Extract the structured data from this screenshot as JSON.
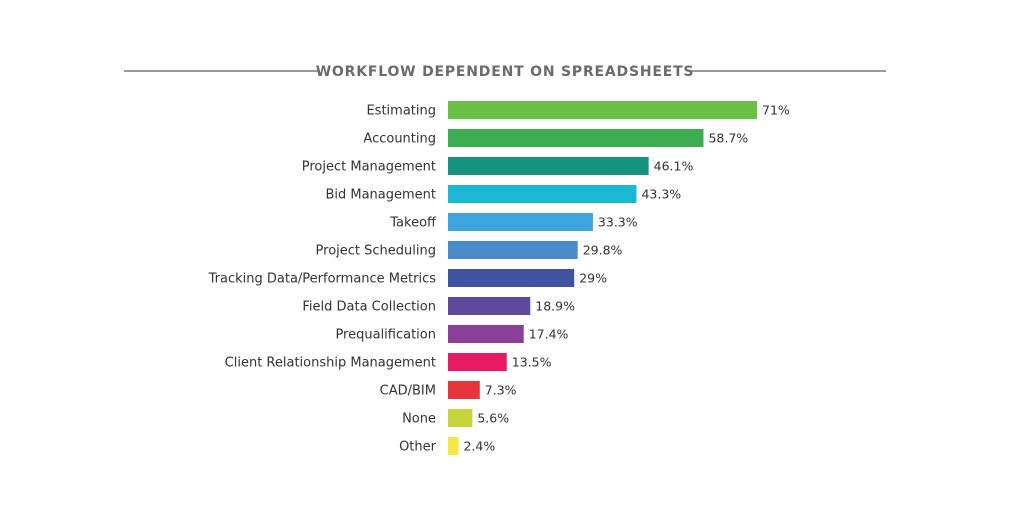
{
  "chart_data": {
    "type": "bar",
    "orientation": "horizontal",
    "title": "WORKFLOW DEPENDENT ON SPREADSHEETS",
    "xlabel": "",
    "ylabel": "",
    "xlim": [
      0,
      71
    ],
    "grid": false,
    "legend": "none",
    "categories": [
      "Estimating",
      "Accounting",
      "Project Management",
      "Bid Management",
      "Takeoff",
      "Project Scheduling",
      "Tracking Data/Performance Metrics",
      "Field Data Collection",
      "Prequalification",
      "Client Relationship Management",
      "CAD/BIM",
      "None",
      "Other"
    ],
    "values": [
      71,
      58.7,
      46.1,
      43.3,
      33.3,
      29.8,
      29,
      18.9,
      17.4,
      13.5,
      7.3,
      5.6,
      2.4
    ],
    "value_labels": [
      "71%",
      "58.7%",
      "46.1%",
      "43.3%",
      "33.3%",
      "29.8%",
      "29%",
      "18.9%",
      "17.4%",
      "13.5%",
      "7.3%",
      "5.6%",
      "2.4%"
    ],
    "colors": [
      "#6abf45",
      "#3ead4f",
      "#14937e",
      "#1ab8d2",
      "#3ea4dd",
      "#4a8ccb",
      "#3f53a0",
      "#5e4a9c",
      "#8a3f98",
      "#e81a63",
      "#e8343a",
      "#c5d53a",
      "#f4e943"
    ],
    "title_rule_color": "#9a9a9a"
  }
}
